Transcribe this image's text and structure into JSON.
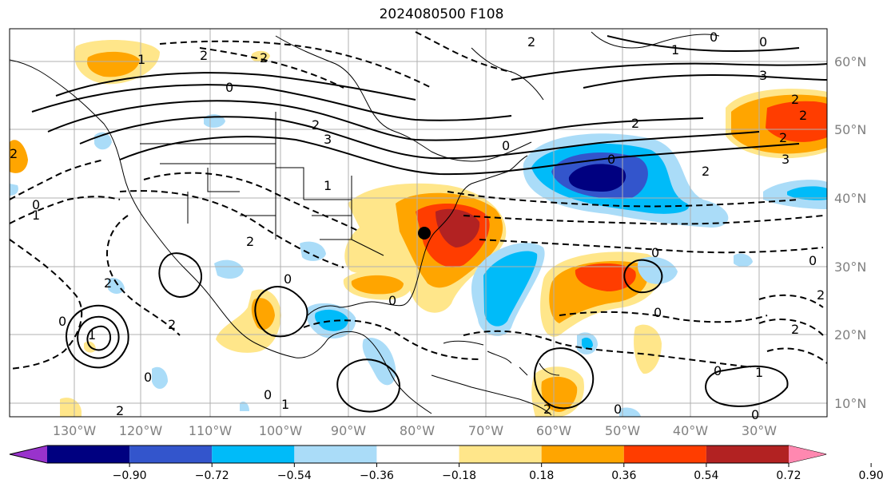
{
  "title": "2024080500 F108",
  "longitude_labels": [
    "130°W",
    "120°W",
    "110°W",
    "100°W",
    "90°W",
    "80°W",
    "70°W",
    "60°W",
    "50°W",
    "40°W",
    "30°W"
  ],
  "latitude_labels": [
    "60°N",
    "50°N",
    "40°N",
    "30°N",
    "20°N",
    "10°N"
  ],
  "colorbar": {
    "ticks": [
      "−0.90",
      "−0.72",
      "−0.54",
      "−0.36",
      "−0.18",
      "0.18",
      "0.36",
      "0.54",
      "0.72",
      "0.90"
    ],
    "colors": [
      "#9933cc",
      "#000080",
      "#3355cc",
      "#00bbf9",
      "#aadcf8",
      "#ffffff",
      "#ffe68a",
      "#ffa500",
      "#ff3d00",
      "#b22222",
      "#ff88b0"
    ]
  },
  "contour_labels": [
    "1",
    "2",
    "0",
    "2",
    "0",
    "2",
    "2",
    "3",
    "2",
    "0",
    "0",
    "0",
    "2",
    "1",
    "0",
    "2",
    "1",
    "2",
    "2",
    "0",
    "0",
    "0",
    "3",
    "2",
    "2",
    "2",
    "3",
    "0",
    "2",
    "0",
    "1",
    "0",
    "2",
    "0",
    "1",
    "2",
    "0",
    "0",
    "2",
    "1",
    "2",
    "0",
    "1",
    "0"
  ],
  "marker": "storm-center"
}
